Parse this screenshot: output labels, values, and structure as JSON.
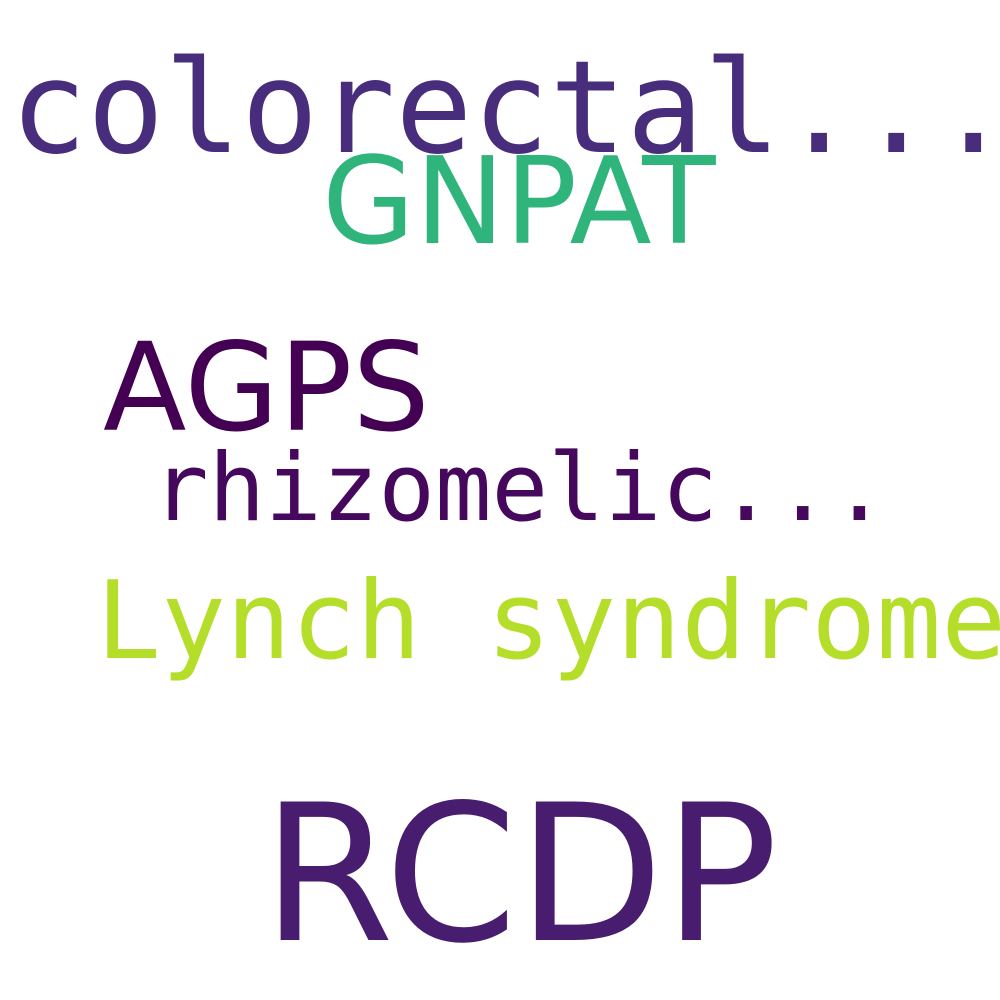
{
  "word_cloud": {
    "words": [
      {
        "id": "w-colorectal",
        "text": "colorectal...",
        "color": "#472d7b"
      },
      {
        "id": "w-gnpat",
        "text": "GNPAT",
        "color": "#2fb47c"
      },
      {
        "id": "w-agps",
        "text": "AGPS",
        "color": "#440154"
      },
      {
        "id": "w-rhizomelic",
        "text": "rhizomelic...",
        "color": "#46085c"
      },
      {
        "id": "w-lynch",
        "text": "Lynch syndrome",
        "color": "#b5de2b"
      },
      {
        "id": "w-rcdp",
        "text": "RCDP",
        "color": "#481d6f"
      }
    ]
  }
}
